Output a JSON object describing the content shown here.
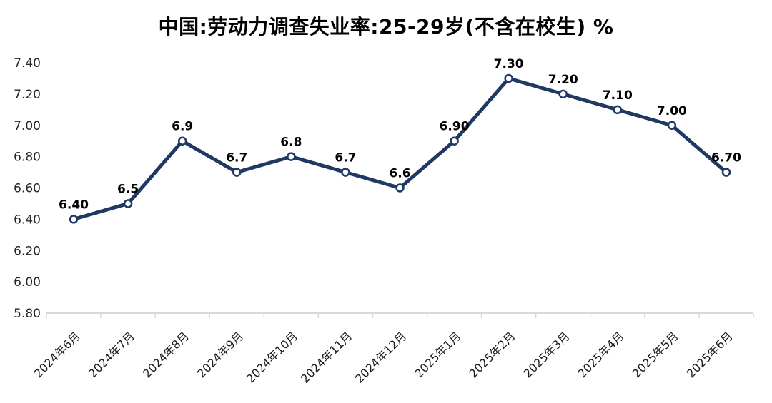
{
  "chart_data": {
    "type": "line",
    "title": "中国:劳动力调查失业率:25-29岁(不含在校生) %",
    "xlabel": "",
    "ylabel": "",
    "unit": "%",
    "categories": [
      "2024年6月",
      "2024年7月",
      "2024年8月",
      "2024年9月",
      "2024年10月",
      "2024年11月",
      "2024年12月",
      "2025年1月",
      "2025年2月",
      "2025年3月",
      "2025年4月",
      "2025年5月",
      "2025年6月"
    ],
    "values": [
      6.4,
      6.5,
      6.9,
      6.7,
      6.8,
      6.7,
      6.6,
      6.9,
      7.3,
      7.2,
      7.1,
      7.0,
      6.7
    ],
    "point_labels": [
      "6.40",
      "6.5",
      "6.9",
      "6.7",
      "6.8",
      "6.7",
      "6.6",
      "6.90",
      "7.30",
      "7.20",
      "7.10",
      "7.00",
      "6.70"
    ],
    "y_axis": {
      "min": 5.8,
      "max": 7.4,
      "step": 0.2,
      "tick_labels": [
        "5.80",
        "6.00",
        "6.20",
        "6.40",
        "6.60",
        "6.80",
        "7.00",
        "7.20",
        "7.40"
      ]
    },
    "ylim": [
      5.8,
      7.4
    ],
    "x_tick_rotation_deg": 45,
    "grid": false,
    "legend": "none",
    "colors": {
      "line": "#1f3864",
      "marker_fill": "#ffffff",
      "marker_stroke": "#1f3864",
      "axis": "#d9d9d9",
      "data_label": "#000000",
      "y_tick_label": "#262626",
      "x_tick_label": "#1a1a1a",
      "title": "#000000",
      "background": "#ffffff"
    }
  }
}
